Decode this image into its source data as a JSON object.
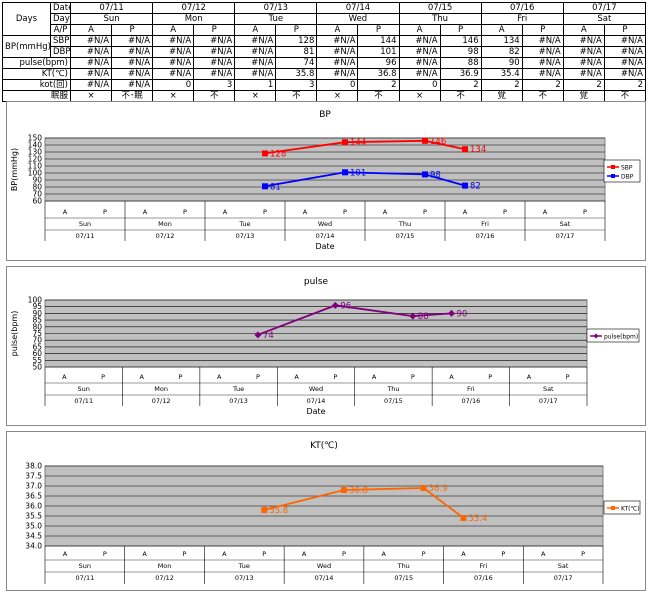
{
  "table": {
    "header_days": "Days",
    "header_date": "Date",
    "header_day": "Day",
    "header_ap": "A/P",
    "bp_group": "BP(mmHg)",
    "dates": [
      "07/11",
      "07/12",
      "07/13",
      "07/14",
      "07/15",
      "07/16",
      "07/17"
    ],
    "days": [
      "Sun",
      "Mon",
      "Tue",
      "Wed",
      "Thu",
      "Fri",
      "Sat"
    ],
    "ap": [
      "A",
      "P",
      "A",
      "P",
      "A",
      "P",
      "A",
      "P",
      "A",
      "P",
      "A",
      "P",
      "A",
      "P"
    ],
    "rows": [
      {
        "label": "SBP",
        "values": [
          "#N/A",
          "#N/A",
          "#N/A",
          "#N/A",
          "#N/A",
          "128",
          "#N/A",
          "144",
          "#N/A",
          "146",
          "134",
          "#N/A",
          "#N/A",
          "#N/A"
        ]
      },
      {
        "label": "DBP",
        "values": [
          "#N/A",
          "#N/A",
          "#N/A",
          "#N/A",
          "#N/A",
          "81",
          "#N/A",
          "101",
          "#N/A",
          "98",
          "82",
          "#N/A",
          "#N/A",
          "#N/A"
        ]
      },
      {
        "label": "pulse(bpm)",
        "values": [
          "#N/A",
          "#N/A",
          "#N/A",
          "#N/A",
          "#N/A",
          "74",
          "#N/A",
          "96",
          "#N/A",
          "88",
          "90",
          "#N/A",
          "#N/A",
          "#N/A"
        ]
      },
      {
        "label": "KT(℃)",
        "values": [
          "#N/A",
          "#N/A",
          "#N/A",
          "#N/A",
          "#N/A",
          "35.8",
          "#N/A",
          "36.8",
          "#N/A",
          "36.9",
          "35.4",
          "#N/A",
          "#N/A",
          "#N/A"
        ]
      },
      {
        "label": "kot(回)",
        "values": [
          "#N/A",
          "#N/A",
          "0",
          "3",
          "1",
          "3",
          "0",
          "2",
          "0",
          "2",
          "2",
          "2",
          "2",
          "2"
        ]
      },
      {
        "label": "眠服",
        "values": [
          "×",
          "不･眠",
          "×",
          "不",
          "×",
          "不",
          "×",
          "不",
          "×",
          "不",
          "覚",
          "不",
          "覚",
          "不"
        ]
      }
    ]
  },
  "chart_data": [
    {
      "type": "line",
      "title": "BP",
      "ylabel": "BP(mmHg)",
      "xlabel": "Date",
      "ylim": [
        60,
        150
      ],
      "yticks": [
        60,
        70,
        80,
        90,
        100,
        110,
        120,
        130,
        140,
        150
      ],
      "ap_labels": [
        "A",
        "P",
        "A",
        "P",
        "A",
        "P",
        "A",
        "P",
        "A",
        "P",
        "A",
        "P",
        "A",
        "P"
      ],
      "day_labels": [
        "Sun",
        "Mon",
        "Tue",
        "Wed",
        "Thu",
        "Fri",
        "Sat"
      ],
      "date_labels": [
        "07/11",
        "07/12",
        "07/13",
        "07/14",
        "07/15",
        "07/16",
        "07/17"
      ],
      "legend": "right",
      "series": [
        {
          "name": "SBP",
          "color": "#ff0000",
          "marker": "square",
          "values": [
            null,
            null,
            null,
            null,
            null,
            128,
            null,
            144,
            null,
            146,
            134,
            null,
            null,
            null
          ],
          "labels": [
            "",
            "",
            "",
            "",
            "",
            "128",
            "",
            "144",
            "",
            "146",
            "134",
            "",
            "",
            ""
          ]
        },
        {
          "name": "DBP",
          "color": "#0000ff",
          "marker": "square",
          "values": [
            null,
            null,
            null,
            null,
            null,
            81,
            null,
            101,
            null,
            98,
            82,
            null,
            null,
            null
          ],
          "labels": [
            "",
            "",
            "",
            "",
            "",
            "81",
            "",
            "101",
            "",
            "98",
            "82",
            "",
            "",
            ""
          ]
        }
      ]
    },
    {
      "type": "line",
      "title": "pulse",
      "ylabel": "pulse(bpm)",
      "xlabel": "Date",
      "ylim": [
        50,
        100
      ],
      "yticks": [
        50,
        55,
        60,
        65,
        70,
        75,
        80,
        85,
        90,
        95,
        100
      ],
      "ap_labels": [
        "A",
        "P",
        "A",
        "P",
        "A",
        "P",
        "A",
        "P",
        "A",
        "P",
        "A",
        "P",
        "A",
        "P"
      ],
      "day_labels": [
        "Sun",
        "Mon",
        "Tue",
        "Wed",
        "Thu",
        "Fri",
        "Sat"
      ],
      "date_labels": [
        "07/11",
        "07/12",
        "07/13",
        "07/14",
        "07/15",
        "07/16",
        "07/17"
      ],
      "legend": "right",
      "series": [
        {
          "name": "pulse(bpm)",
          "color": "#800080",
          "marker": "diamond",
          "values": [
            null,
            null,
            null,
            null,
            null,
            74,
            null,
            96,
            null,
            88,
            90,
            null,
            null,
            null
          ],
          "labels": [
            "",
            "",
            "",
            "",
            "",
            "74",
            "",
            "96",
            "",
            "88",
            "90",
            "",
            "",
            ""
          ]
        }
      ]
    },
    {
      "type": "line",
      "title": "KT(℃)",
      "ylabel": "",
      "xlabel": "",
      "ylim": [
        34.0,
        38.0
      ],
      "yticks": [
        "34.0",
        "34.5",
        "35.0",
        "35.5",
        "36.0",
        "36.5",
        "37.0",
        "37.5",
        "38.0"
      ],
      "ap_labels": [
        "A",
        "P",
        "A",
        "P",
        "A",
        "P",
        "A",
        "P",
        "A",
        "P",
        "A",
        "P",
        "A",
        "P"
      ],
      "day_labels": [
        "Sun",
        "Mon",
        "Tue",
        "Wed",
        "Thu",
        "Fri",
        "Sat"
      ],
      "date_labels": [
        "07/11",
        "07/12",
        "07/13",
        "07/14",
        "07/15",
        "07/16",
        "07/17"
      ],
      "legend": "right",
      "series": [
        {
          "name": "KT(℃)",
          "color": "#ff6600",
          "marker": "square",
          "values": [
            null,
            null,
            null,
            null,
            null,
            35.8,
            null,
            36.8,
            null,
            36.9,
            35.4,
            null,
            null,
            null
          ],
          "labels": [
            "",
            "",
            "",
            "",
            "",
            "35.8",
            "",
            "36.8",
            "",
            "36.9",
            "35.4",
            "",
            "",
            ""
          ]
        }
      ]
    }
  ]
}
